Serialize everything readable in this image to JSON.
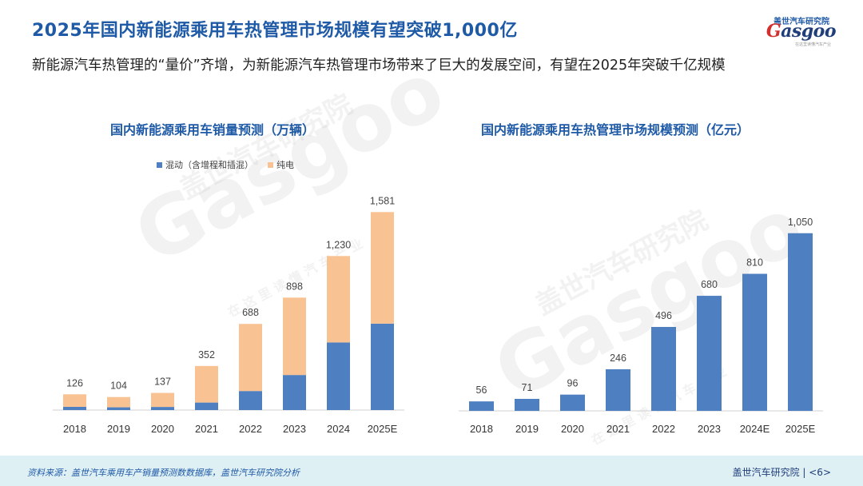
{
  "header": {
    "title": "2025年国内新能源乘用车热管理市场规模有望突破1,000亿",
    "subtitle": "新能源汽车热管理的“量价”齐增，为新能源汽车热管理市场带来了巨大的发展空间，有望在2025年突破千亿规模"
  },
  "logo": {
    "cn": "盖世汽车研究院",
    "en_first": "G",
    "en_rest": "asgoo",
    "tagline": "在这里读懂汽车产业"
  },
  "watermark": {
    "cn": "盖世汽车研究院",
    "en": "Gasgoo",
    "tagline": "在 这 里 读 懂 汽 车 产 业"
  },
  "colors": {
    "blue": "#4e7fc0",
    "orange": "#f9c293",
    "title_blue": "#1f5aa6"
  },
  "chart_data": [
    {
      "type": "bar",
      "stacked": true,
      "title": "国内新能源乘用车销量预测（万辆）",
      "categories": [
        "2018",
        "2019",
        "2020",
        "2021",
        "2022",
        "2023",
        "2024",
        "2025E"
      ],
      "series": [
        {
          "name": "混动（含增程和插混）",
          "color": "#4e7fc0",
          "values": [
            26,
            22,
            25,
            60,
            152,
            280,
            540,
            690
          ]
        },
        {
          "name": "纯电",
          "color": "#f9c293",
          "values": [
            100,
            82,
            112,
            292,
            536,
            618,
            690,
            891
          ]
        }
      ],
      "totals": [
        126,
        104,
        137,
        352,
        688,
        898,
        1230,
        1581
      ],
      "total_labels": [
        "126",
        "104",
        "137",
        "352",
        "688",
        "898",
        "1,230",
        "1,581"
      ],
      "ylim": [
        0,
        1800
      ],
      "legend": "top"
    },
    {
      "type": "bar",
      "title": "国内新能源乘用车热管理市场规模预测（亿元）",
      "categories": [
        "2018",
        "2019",
        "2020",
        "2021",
        "2022",
        "2023",
        "2024E",
        "2025E"
      ],
      "values": [
        56,
        71,
        96,
        246,
        496,
        680,
        810,
        1050
      ],
      "value_labels": [
        "56",
        "71",
        "96",
        "246",
        "496",
        "680",
        "810",
        "1,050"
      ],
      "color": "#4e7fc0",
      "ylim": [
        0,
        1200
      ]
    }
  ],
  "footer": {
    "source": "资料来源：盖世汽车乘用车产销量预测数数据库，盖世汽车研究院分析",
    "brand": "盖世汽车研究院 | <6>"
  }
}
